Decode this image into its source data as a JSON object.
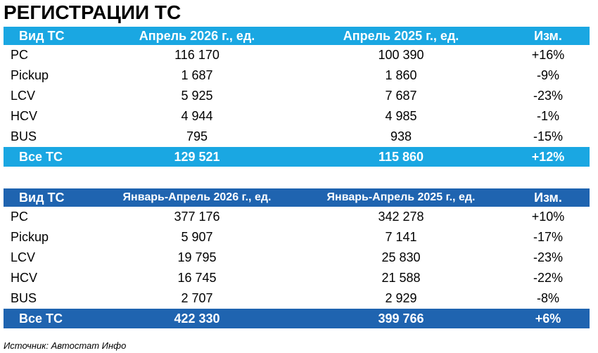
{
  "title": "РЕГИСТРАЦИИ ТС",
  "tables": [
    {
      "header": [
        "Вид ТС",
        "Апрель 2026 г., ед.",
        "Апрель 2025 г., ед.",
        "Изм."
      ],
      "rows": [
        [
          "PC",
          "116 170",
          "100 390",
          "+16%"
        ],
        [
          "Pickup",
          "1 687",
          "1 860",
          "-9%"
        ],
        [
          "LCV",
          "5 925",
          "7 687",
          "-23%"
        ],
        [
          "HCV",
          "4 944",
          "4 985",
          "-1%"
        ],
        [
          "BUS",
          "795",
          "938",
          "-15%"
        ]
      ],
      "total": [
        "Все ТС",
        "129 521",
        "115 860",
        "+12%"
      ]
    },
    {
      "header": [
        "Вид ТС",
        "Январь-Апрель 2026 г., ед.",
        "Январь-Апрель 2025 г., ед.",
        "Изм."
      ],
      "rows": [
        [
          "PC",
          "377 176",
          "342 278",
          "+10%"
        ],
        [
          "Pickup",
          "5 907",
          "7 141",
          "-17%"
        ],
        [
          "LCV",
          "19 795",
          "25 830",
          "-23%"
        ],
        [
          "HCV",
          "16 745",
          "21 588",
          "-22%"
        ],
        [
          "BUS",
          "2 707",
          "2 929",
          "-8%"
        ]
      ],
      "total": [
        "Все ТС",
        "422 330",
        "399 766",
        "+6%"
      ]
    }
  ],
  "source": "Источник: Автостат Инфо"
}
